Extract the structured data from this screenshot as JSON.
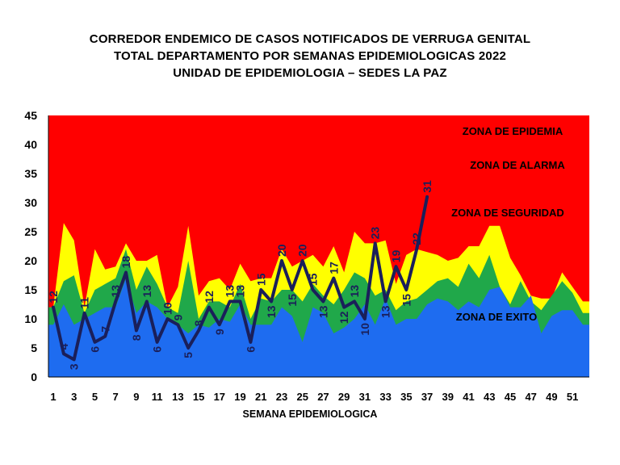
{
  "title_lines": [
    "CORREDOR ENDEMICO DE CASOS NOTIFICADOS DE VERRUGA GENITAL",
    "TOTAL DEPARTAMENTO POR SEMANAS EPIDEMIOLOGICAS 2022",
    "UNIDAD DE EPIDEMIOLOGIA – SEDES LA PAZ"
  ],
  "chart_data": {
    "type": "area",
    "title": "CORREDOR ENDEMICO DE CASOS NOTIFICADOS DE VERRUGA GENITAL TOTAL DEPARTAMENTO POR SEMANAS EPIDEMIOLOGICAS 2022 UNIDAD DE EPIDEMIOLOGIA – SEDES LA PAZ",
    "xlabel": "SEMANA EPIDEMIOLOGICA",
    "ylabel": "",
    "ylim": [
      0,
      45
    ],
    "xlim": [
      1,
      52
    ],
    "y_ticks": [
      "0",
      "5",
      "10",
      "15",
      "20",
      "25",
      "30",
      "35",
      "40",
      "45"
    ],
    "x_ticks": [
      "1",
      "3",
      "5",
      "7",
      "9",
      "11",
      "13",
      "15",
      "17",
      "19",
      "21",
      "23",
      "25",
      "27",
      "29",
      "31",
      "33",
      "35",
      "37",
      "39",
      "41",
      "43",
      "45",
      "47",
      "49",
      "51"
    ],
    "x": [
      1,
      2,
      3,
      4,
      5,
      6,
      7,
      8,
      9,
      10,
      11,
      12,
      13,
      14,
      15,
      16,
      17,
      18,
      19,
      20,
      21,
      22,
      23,
      24,
      25,
      26,
      27,
      28,
      29,
      30,
      31,
      32,
      33,
      34,
      35,
      36,
      37,
      38,
      39,
      40,
      41,
      42,
      43,
      44,
      45,
      46,
      47,
      48,
      49,
      50,
      51,
      52
    ],
    "zones": [
      {
        "name": "ZONA DE EXITO",
        "color": "#1e6cf0",
        "values": [
          9,
          12.5,
          9,
          10,
          11,
          12,
          12,
          17,
          11,
          13,
          12,
          10,
          9,
          7.5,
          9,
          8.5,
          10,
          9.5,
          12.5,
          9,
          9,
          9,
          12,
          10.5,
          6,
          12,
          11,
          7.5,
          8.5,
          10,
          12.5,
          9,
          13.5,
          9,
          10,
          10,
          12.5,
          13.5,
          13,
          11.5,
          13,
          12,
          15,
          15.5,
          12,
          12,
          14,
          7.5,
          10.5,
          11.5,
          11.5,
          9
        ]
      },
      {
        "name": "ZONA DE SEGURIDAD",
        "color": "#20a84a",
        "values": [
          12,
          16.5,
          17.5,
          11,
          15,
          16,
          17,
          22,
          15,
          19,
          16,
          12,
          11,
          20,
          10,
          13,
          13,
          12,
          16,
          10,
          13.5,
          13,
          15,
          15,
          13,
          16,
          14,
          12.5,
          15,
          18,
          17,
          14,
          15,
          11.5,
          13,
          13.5,
          15,
          16.5,
          17,
          15.5,
          19.5,
          17,
          21,
          15.5,
          12.5,
          16.5,
          13,
          11.5,
          14,
          16.5,
          14.5,
          11
        ]
      },
      {
        "name": "ZONA DE ALARMA",
        "color": "#ffff00",
        "values": [
          12,
          26.5,
          23.5,
          12,
          22,
          18.5,
          19,
          23,
          20,
          20,
          21,
          12,
          15.5,
          26,
          14,
          16.5,
          17,
          15,
          19.5,
          16.5,
          17,
          17,
          22,
          19,
          20,
          21,
          19,
          22.5,
          18,
          25,
          23,
          23,
          23.5,
          16,
          21,
          22,
          21.5,
          21,
          20,
          20.5,
          22.5,
          22.5,
          26,
          26,
          20.5,
          17.5,
          14,
          13.5,
          13.5,
          18,
          15.5,
          13
        ]
      },
      {
        "name": "ZONA DE EPIDEMIA",
        "color": "#ff0000",
        "values": [
          45,
          45,
          45,
          45,
          45,
          45,
          45,
          45,
          45,
          45,
          45,
          45,
          45,
          45,
          45,
          45,
          45,
          45,
          45,
          45,
          45,
          45,
          45,
          45,
          45,
          45,
          45,
          45,
          45,
          45,
          45,
          45,
          45,
          45,
          45,
          45,
          45,
          45,
          45,
          45,
          45,
          45,
          45,
          45,
          45,
          45,
          45,
          45,
          45,
          45,
          45,
          45
        ]
      }
    ],
    "series": [
      {
        "x": [
          1,
          2,
          3,
          4,
          5,
          6,
          7,
          8,
          9,
          10,
          11,
          12,
          13,
          14,
          15,
          16,
          17,
          18,
          19,
          20,
          21,
          22,
          23,
          24,
          25,
          26,
          27,
          28,
          29,
          30,
          31,
          32,
          33,
          34,
          35,
          36,
          37
        ],
        "values": [
          12,
          4,
          3,
          11,
          6,
          7,
          13,
          18,
          8,
          13,
          6,
          10,
          9,
          5,
          8,
          12,
          9,
          13,
          13,
          6,
          15,
          13,
          20,
          15,
          20,
          15,
          13,
          17,
          12,
          13,
          10,
          23,
          13,
          19,
          15,
          22,
          31
        ],
        "color": "#1a1f5a"
      }
    ],
    "annotations": [
      "ZONA DE EPIDEMIA",
      "ZONA DE ALARMA",
      "ZONA DE SEGURIDAD",
      "ZONA DE EXITO"
    ],
    "grid": false,
    "legend": "none"
  }
}
